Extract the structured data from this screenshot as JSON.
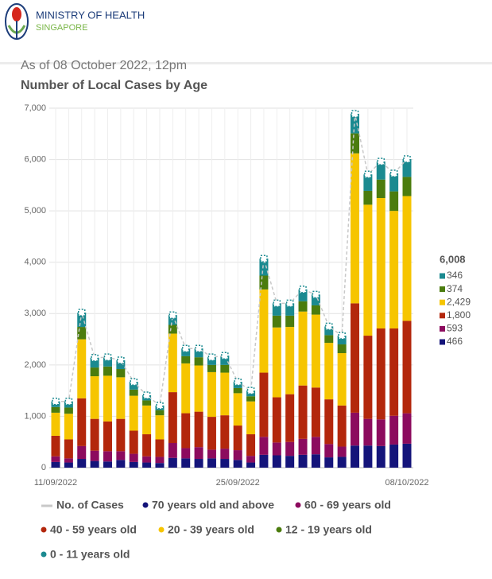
{
  "header": {
    "title": "MINISTRY OF HEALTH",
    "subtitle": "SINGAPORE"
  },
  "chart_data": {
    "type": "stacked_bar_line",
    "date_note": "As of 08 October 2022, 12pm",
    "title": "Number of Local Cases by Age",
    "categories": [
      "11/09/2022",
      null,
      null,
      null,
      null,
      null,
      null,
      null,
      null,
      null,
      null,
      null,
      null,
      null,
      "25/09/2022",
      null,
      null,
      null,
      null,
      null,
      null,
      null,
      null,
      null,
      null,
      null,
      null,
      "08/10/2022"
    ],
    "ylim": [
      0,
      7000
    ],
    "yticks": [
      0,
      {
        "value": 1000,
        "label": "1,000"
      },
      {
        "value": 2000,
        "label": "2,000"
      },
      {
        "value": 3000,
        "label": "3,000"
      },
      {
        "value": 4000,
        "label": "4,000"
      },
      {
        "value": 5000,
        "label": "5,000"
      },
      {
        "value": 6000,
        "label": "6,000"
      },
      {
        "value": 7000,
        "label": "7,000"
      }
    ],
    "grid": true,
    "line": {
      "name": "No. of Cases",
      "color": "#c8c8c8",
      "values": [
        1290,
        1290,
        3020,
        2140,
        2150,
        2090,
        1670,
        1410,
        1210,
        2970,
        2320,
        2320,
        2150,
        2180,
        1670,
        1500,
        4070,
        3200,
        3200,
        3470,
        3370,
        2750,
        2570,
        6890,
        5710,
        5960,
        5730,
        6008
      ]
    },
    "series": [
      {
        "name": "70 years old and above",
        "color": "#14147a",
        "values": [
          110,
          100,
          170,
          130,
          120,
          150,
          110,
          100,
          90,
          190,
          180,
          170,
          180,
          170,
          150,
          100,
          250,
          240,
          230,
          250,
          260,
          200,
          210,
          430,
          430,
          420,
          450,
          466
        ]
      },
      {
        "name": "60 - 69 years old",
        "color": "#8c0b5e",
        "values": [
          110,
          80,
          250,
          200,
          200,
          170,
          160,
          120,
          120,
          290,
          200,
          230,
          170,
          200,
          190,
          130,
          350,
          250,
          270,
          310,
          340,
          260,
          200,
          640,
          520,
          520,
          560,
          593
        ]
      },
      {
        "name": "40 - 59 years old",
        "color": "#b3270c",
        "values": [
          400,
          370,
          930,
          620,
          580,
          630,
          450,
          430,
          340,
          990,
          680,
          690,
          640,
          650,
          480,
          420,
          1250,
          880,
          930,
          1040,
          960,
          870,
          800,
          2130,
          1620,
          1770,
          1700,
          1800
        ]
      },
      {
        "name": "20 - 39 years old",
        "color": "#f6c500",
        "values": [
          450,
          500,
          1150,
          830,
          890,
          810,
          680,
          560,
          470,
          1140,
          970,
          900,
          870,
          830,
          630,
          640,
          1620,
          1360,
          1310,
          1440,
          1420,
          1100,
          1020,
          2920,
          2550,
          2540,
          2290,
          2429
        ]
      },
      {
        "name": "12 - 19 years old",
        "color": "#4b7c0e",
        "values": [
          110,
          120,
          240,
          170,
          180,
          160,
          120,
          100,
          100,
          170,
          140,
          160,
          140,
          150,
          100,
          100,
          270,
          230,
          220,
          200,
          180,
          150,
          170,
          390,
          270,
          360,
          380,
          374
        ]
      },
      {
        "name": "0 - 11 years old",
        "color": "#1b8a90",
        "values": [
          110,
          120,
          280,
          190,
          180,
          170,
          150,
          100,
          90,
          190,
          150,
          170,
          150,
          180,
          120,
          110,
          330,
          240,
          240,
          230,
          210,
          170,
          170,
          380,
          320,
          350,
          350,
          346
        ]
      }
    ],
    "summary": {
      "total": {
        "value": 6008,
        "label": "6,008"
      },
      "items": [
        346,
        374,
        {
          "value": 2429,
          "label": "2,429"
        },
        {
          "value": 1800,
          "label": "1,800"
        },
        593,
        466
      ]
    }
  }
}
